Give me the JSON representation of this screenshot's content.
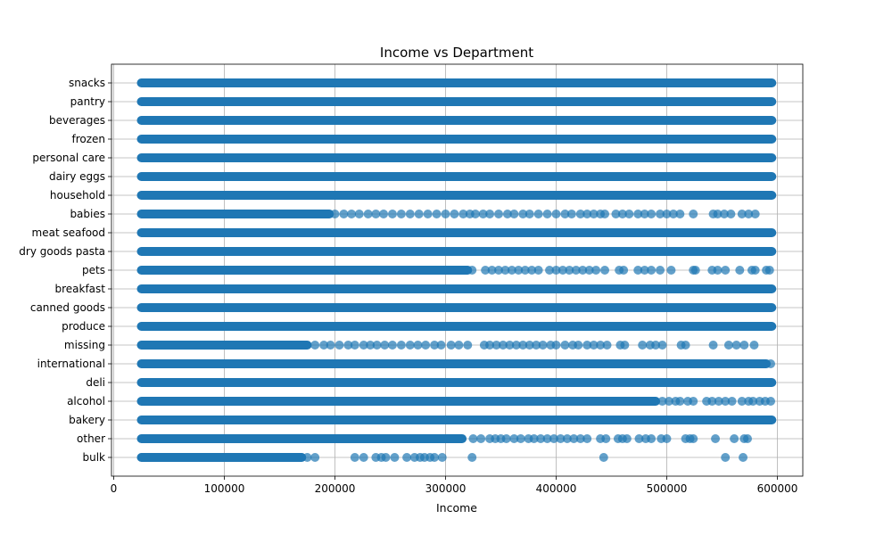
{
  "chart_data": {
    "type": "scatter",
    "title": "Income vs Department",
    "xlabel": "Income",
    "ylabel": "",
    "xlim": [
      -2000,
      623000
    ],
    "x_ticks": [
      0,
      100000,
      200000,
      300000,
      400000,
      500000,
      600000
    ],
    "x_tick_labels": [
      "0",
      "100000",
      "200000",
      "300000",
      "400000",
      "500000",
      "600000"
    ],
    "grid": true,
    "color": "#1f77b4",
    "categories": [
      "bulk",
      "other",
      "bakery",
      "alcohol",
      "deli",
      "international",
      "missing",
      "produce",
      "canned goods",
      "breakfast",
      "pets",
      "dry goods pasta",
      "meat seafood",
      "babies",
      "household",
      "dairy eggs",
      "personal care",
      "frozen",
      "beverages",
      "pantry",
      "snacks"
    ],
    "series": [
      {
        "category": "bulk",
        "dense_ranges": [
          [
            25000,
            170000
          ]
        ],
        "points": [
          175000,
          182000,
          218000,
          226000,
          237000,
          242000,
          246000,
          254000,
          265000,
          272000,
          277000,
          281000,
          286000,
          290000,
          297000,
          324000,
          443000,
          553000,
          569000
        ]
      },
      {
        "category": "other",
        "dense_ranges": [
          [
            25000,
            315000
          ]
        ],
        "points": [
          325000,
          332000,
          340000,
          345000,
          350000,
          355000,
          362000,
          368000,
          375000,
          380000,
          386000,
          392000,
          398000,
          404000,
          410000,
          416000,
          422000,
          428000,
          440000,
          445000,
          456000,
          460000,
          464000,
          475000,
          481000,
          486000,
          495000,
          500000,
          517000,
          521000,
          524000,
          544000,
          561000,
          570000,
          573000
        ]
      },
      {
        "category": "bakery",
        "dense_ranges": [
          [
            25000,
            595000
          ]
        ],
        "points": []
      },
      {
        "category": "alcohol",
        "dense_ranges": [
          [
            25000,
            490000
          ]
        ],
        "points": [
          496000,
          502000,
          508000,
          512000,
          519000,
          524000,
          536000,
          541000,
          547000,
          553000,
          559000,
          568000,
          574000,
          578000,
          584000,
          589000,
          594000
        ]
      },
      {
        "category": "deli",
        "dense_ranges": [
          [
            25000,
            595000
          ]
        ],
        "points": []
      },
      {
        "category": "international",
        "dense_ranges": [
          [
            25000,
            590000
          ]
        ],
        "points": [
          594000
        ]
      },
      {
        "category": "missing",
        "dense_ranges": [
          [
            25000,
            175000
          ]
        ],
        "points": [
          182000,
          190000,
          196000,
          204000,
          212000,
          218000,
          226000,
          232000,
          238000,
          245000,
          252000,
          260000,
          268000,
          275000,
          282000,
          290000,
          296000,
          305000,
          312000,
          320000,
          335000,
          340000,
          346000,
          352000,
          358000,
          364000,
          370000,
          376000,
          382000,
          388000,
          395000,
          400000,
          408000,
          415000,
          420000,
          428000,
          434000,
          440000,
          446000,
          458000,
          462000,
          478000,
          485000,
          490000,
          496000,
          513000,
          517000,
          542000,
          556000,
          563000,
          570000,
          579000
        ]
      },
      {
        "category": "produce",
        "dense_ranges": [
          [
            25000,
            595000
          ]
        ],
        "points": []
      },
      {
        "category": "canned goods",
        "dense_ranges": [
          [
            25000,
            595000
          ]
        ],
        "points": []
      },
      {
        "category": "breakfast",
        "dense_ranges": [
          [
            25000,
            595000
          ]
        ],
        "points": []
      },
      {
        "category": "pets",
        "dense_ranges": [
          [
            25000,
            320000
          ]
        ],
        "points": [
          324000,
          336000,
          342000,
          348000,
          354000,
          360000,
          366000,
          372000,
          378000,
          384000,
          394000,
          400000,
          406000,
          412000,
          418000,
          424000,
          430000,
          436000,
          444000,
          457000,
          461000,
          474000,
          480000,
          486000,
          494000,
          504000,
          524000,
          526000,
          541000,
          546000,
          553000,
          566000,
          577000,
          580000,
          590000,
          593000
        ]
      },
      {
        "category": "dry goods pasta",
        "dense_ranges": [
          [
            25000,
            595000
          ]
        ],
        "points": []
      },
      {
        "category": "meat seafood",
        "dense_ranges": [
          [
            25000,
            595000
          ]
        ],
        "points": []
      },
      {
        "category": "babies",
        "dense_ranges": [
          [
            25000,
            195000
          ]
        ],
        "points": [
          200000,
          208000,
          215000,
          222000,
          230000,
          237000,
          244000,
          252000,
          260000,
          268000,
          276000,
          284000,
          292000,
          300000,
          308000,
          316000,
          322000,
          327000,
          334000,
          340000,
          348000,
          356000,
          362000,
          370000,
          376000,
          384000,
          392000,
          400000,
          408000,
          414000,
          422000,
          428000,
          434000,
          440000,
          444000,
          454000,
          460000,
          466000,
          474000,
          480000,
          486000,
          494000,
          500000,
          506000,
          512000,
          524000,
          542000,
          546000,
          552000,
          558000,
          568000,
          574000,
          580000
        ]
      },
      {
        "category": "household",
        "dense_ranges": [
          [
            25000,
            595000
          ]
        ],
        "points": []
      },
      {
        "category": "dairy eggs",
        "dense_ranges": [
          [
            25000,
            595000
          ]
        ],
        "points": []
      },
      {
        "category": "personal care",
        "dense_ranges": [
          [
            25000,
            595000
          ]
        ],
        "points": []
      },
      {
        "category": "frozen",
        "dense_ranges": [
          [
            25000,
            595000
          ]
        ],
        "points": []
      },
      {
        "category": "beverages",
        "dense_ranges": [
          [
            25000,
            595000
          ]
        ],
        "points": []
      },
      {
        "category": "pantry",
        "dense_ranges": [
          [
            25000,
            595000
          ]
        ],
        "points": []
      },
      {
        "category": "snacks",
        "dense_ranges": [
          [
            25000,
            595000
          ]
        ],
        "points": []
      }
    ]
  }
}
